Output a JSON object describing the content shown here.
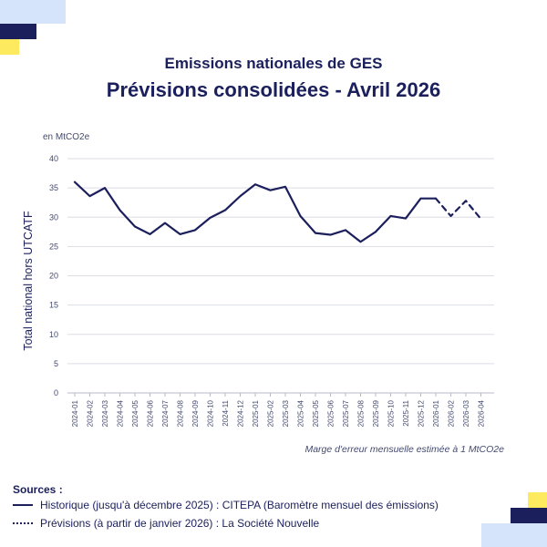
{
  "colors": {
    "navy": "#1b1f5c",
    "light_blue": "#d6e4fb",
    "yellow": "#fdea5e",
    "grid": "#dcdde6"
  },
  "header": {
    "title": "Emissions nationales de GES",
    "subtitle": "Prévisions consolidées - Avril 2026"
  },
  "chart_data": {
    "type": "line",
    "unit_label": "en MtCO2e",
    "ylabel": "Total national hors UTCATF",
    "ylim": [
      0,
      40
    ],
    "yticks": [
      "0",
      "5",
      "10",
      "15",
      "20",
      "25",
      "30",
      "35",
      "40"
    ],
    "grid": true,
    "categories": [
      "2024-01",
      "2024-02",
      "2024-03",
      "2024-04",
      "2024-05",
      "2024-06",
      "2024-07",
      "2024-08",
      "2024-09",
      "2024-10",
      "2024-11",
      "2024-12",
      "2025-01",
      "2025-02",
      "2025-03",
      "2025-04",
      "2025-05",
      "2025-06",
      "2025-07",
      "2025-08",
      "2025-09",
      "2025-10",
      "2025-11",
      "2025-12",
      "2026-01",
      "2026-02",
      "2026-03",
      "2026-04"
    ],
    "series": [
      {
        "style": "solid",
        "values": [
          36.0,
          33.6,
          35.0,
          31.2,
          28.4,
          27.1,
          29.0,
          27.1,
          27.8,
          29.9,
          31.2,
          33.6,
          35.6,
          34.6,
          35.2,
          30.2,
          27.3,
          27.0,
          27.8,
          25.8,
          27.5,
          30.2,
          29.8,
          33.2,
          33.2,
          null,
          null,
          null
        ]
      },
      {
        "style": "dashed",
        "values": [
          null,
          null,
          null,
          null,
          null,
          null,
          null,
          null,
          null,
          null,
          null,
          null,
          null,
          null,
          null,
          null,
          null,
          null,
          null,
          null,
          null,
          null,
          null,
          null,
          33.2,
          30.2,
          32.8,
          29.7
        ]
      }
    ],
    "annotation": "Marge d'erreur mensuelle estimée à 1 MtCO2e"
  },
  "sources": {
    "title": "Sources :",
    "items": [
      {
        "style": "solid",
        "text": "Historique (jusqu'à décembre 2025) : CITEPA (Baromètre mensuel des émissions)"
      },
      {
        "style": "dashed",
        "text": "Prévisions (à partir de janvier 2026) : La Société Nouvelle"
      }
    ]
  }
}
